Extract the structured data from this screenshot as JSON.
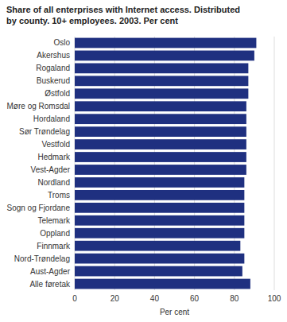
{
  "chart_data": {
    "type": "bar",
    "orientation": "horizontal",
    "title": "Share of all enterprises with Internet access. Distributed\nby county. 10+ employees. 2003. Per cent",
    "categories": [
      "Oslo",
      "Akershus",
      "Rogaland",
      "Buskerud",
      "Østfold",
      "Møre og Romsdal",
      "Hordaland",
      "Sør Trøndelag",
      "Vestfold",
      "Hedmark",
      "Vest-Agder",
      "Nordland",
      "Troms",
      "Sogn og Fjordane",
      "Telemark",
      "Oppland",
      "Finnmark",
      "Nord-Trøndelag",
      "Aust-Agder",
      "Alle føretak"
    ],
    "values": [
      91,
      90,
      87,
      87,
      87,
      86,
      86,
      86,
      86,
      86,
      86,
      85,
      85,
      85,
      85,
      85,
      83,
      85,
      84,
      88
    ],
    "color": "#1f3080",
    "xlabel": "Per cent",
    "xlim": [
      0,
      100
    ],
    "xticks": [
      0,
      20,
      40,
      60,
      80,
      100
    ],
    "grid": true
  }
}
